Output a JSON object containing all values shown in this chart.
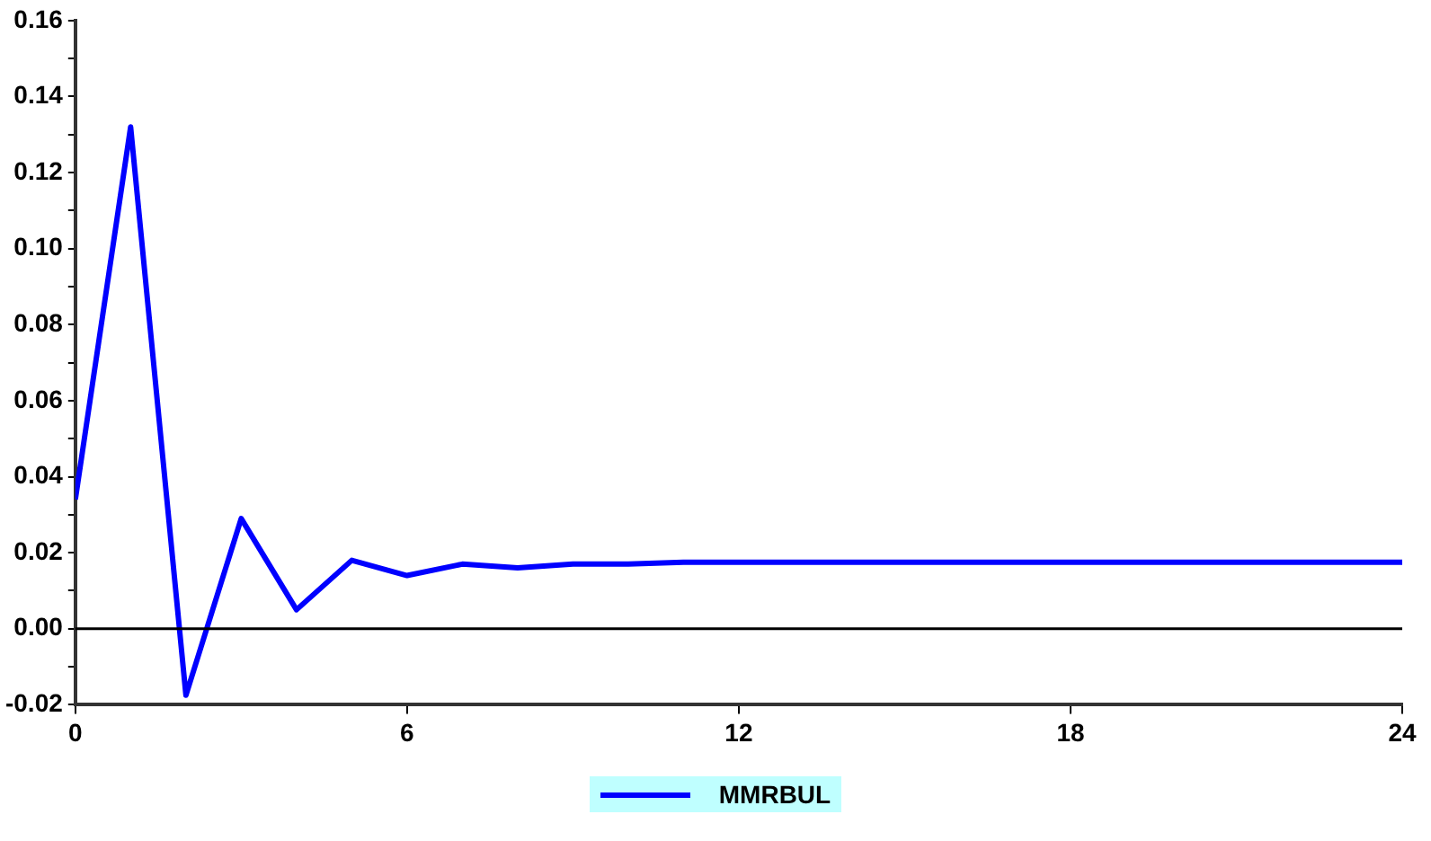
{
  "chart_data": {
    "type": "line",
    "x": [
      0,
      1,
      2,
      3,
      4,
      5,
      6,
      7,
      8,
      9,
      10,
      11,
      12,
      13,
      14,
      15,
      16,
      17,
      18,
      19,
      20,
      21,
      22,
      23,
      24
    ],
    "series": [
      {
        "name": "MMRBUL",
        "color": "#0000ff",
        "values": [
          0.034,
          0.132,
          -0.0175,
          0.029,
          0.005,
          0.018,
          0.014,
          0.017,
          0.016,
          0.017,
          0.017,
          0.0175,
          0.0175,
          0.0175,
          0.0175,
          0.0175,
          0.0175,
          0.0175,
          0.0175,
          0.0175,
          0.0175,
          0.0175,
          0.0175,
          0.0175,
          0.0175
        ]
      }
    ],
    "xlim": [
      0,
      24
    ],
    "xticks": [
      0,
      6,
      12,
      18,
      24
    ],
    "ylim": [
      -0.02,
      0.16
    ],
    "yticks": [
      {
        "value": -0.02,
        "label": "-0.02"
      },
      {
        "value": -0.01,
        "label": null
      },
      {
        "value": 0,
        "label": "0.00"
      },
      {
        "value": 0.01,
        "label": null
      },
      {
        "value": 0.02,
        "label": "0.02"
      },
      {
        "value": 0.03,
        "label": null
      },
      {
        "value": 0.04,
        "label": "0.04"
      },
      {
        "value": 0.05,
        "label": null
      },
      {
        "value": 0.06,
        "label": "0.06"
      },
      {
        "value": 0.07,
        "label": null
      },
      {
        "value": 0.08,
        "label": "0.08"
      },
      {
        "value": 0.09,
        "label": null
      },
      {
        "value": 0.1,
        "label": "0.10"
      },
      {
        "value": 0.11,
        "label": null
      },
      {
        "value": 0.12,
        "label": "0.12"
      },
      {
        "value": 0.13,
        "label": null
      },
      {
        "value": 0.14,
        "label": "0.14"
      },
      {
        "value": 0.15,
        "label": null
      },
      {
        "value": 0.16,
        "label": "0.16"
      }
    ],
    "ref_lines": [
      {
        "axis": "y",
        "value": 0,
        "color": "#000000"
      }
    ],
    "grid": false,
    "legend": "bottom",
    "marker": "none",
    "line_style": "solid"
  }
}
